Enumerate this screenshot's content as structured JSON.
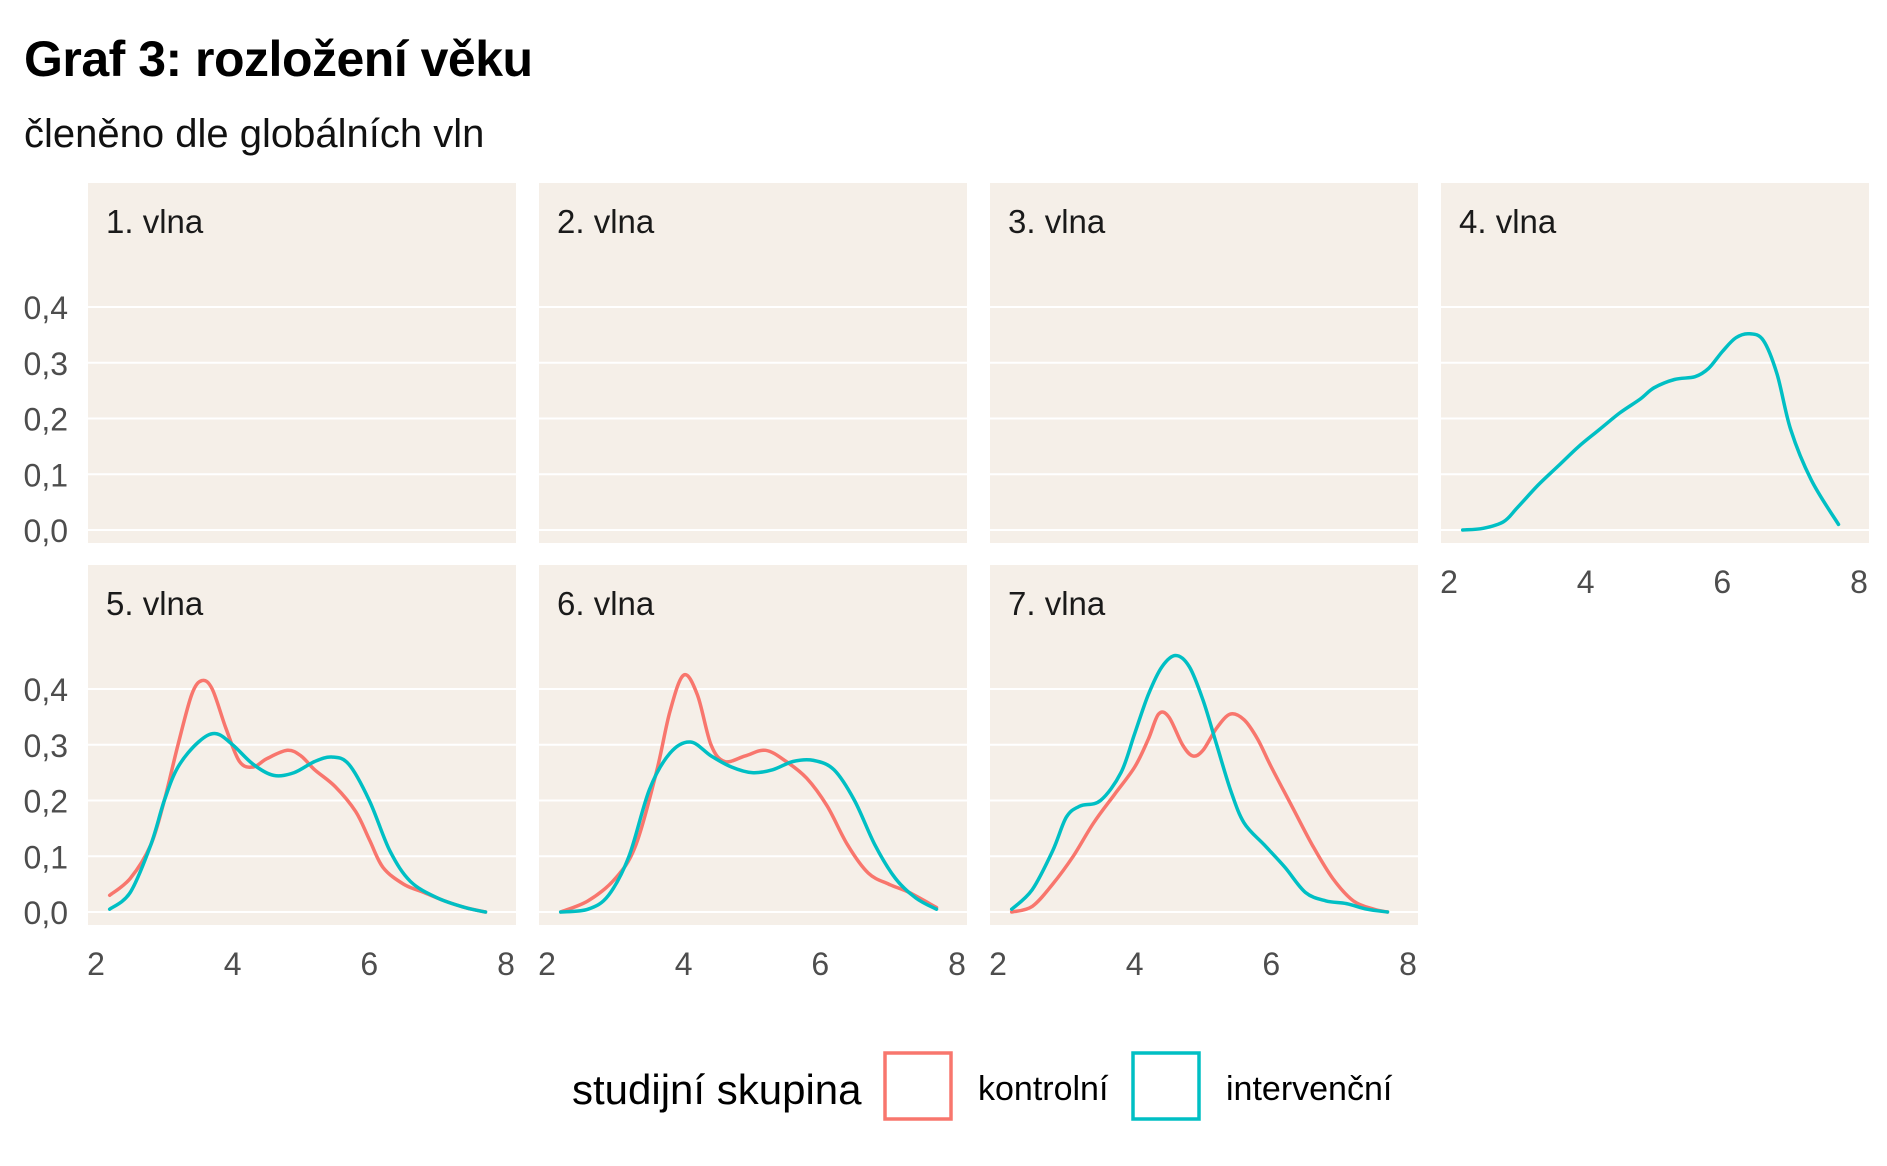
{
  "title": "Graf 3: rozložení věku",
  "subtitle": "členěno dle globálních vln",
  "colors": {
    "kontrolni": "#F8766D",
    "intervencni": "#00BFC4",
    "panel_bg": "#F5EFE8",
    "grid": "#FFFFFF",
    "tick_text": "#4D4D4D"
  },
  "chart_data": {
    "type": "line",
    "subtype": "density facets",
    "xlim": [
      2,
      8
    ],
    "ylim": [
      0,
      0.45
    ],
    "x_ticks": [
      2,
      4,
      6,
      8
    ],
    "y_ticks": [
      0.0,
      0.1,
      0.2,
      0.3,
      0.4
    ],
    "y_tick_labels": [
      "0,0",
      "0,1",
      "0,2",
      "0,3",
      "0,4"
    ],
    "x_tick_labels": [
      "2",
      "4",
      "6",
      "8"
    ],
    "legend": {
      "title": "studijní skupina",
      "position": "bottom",
      "items": [
        {
          "label": "kontrolní",
          "color": "#F8766D"
        },
        {
          "label": "intervenční",
          "color": "#00BFC4"
        }
      ]
    },
    "panels": [
      {
        "label": "1. vlna",
        "series": []
      },
      {
        "label": "2. vlna",
        "series": []
      },
      {
        "label": "3. vlna",
        "series": []
      },
      {
        "label": "4. vlna",
        "series": [
          {
            "group": "intervenční",
            "x": [
              2.2,
              2.5,
              2.8,
              3.0,
              3.3,
              3.6,
              3.9,
              4.2,
              4.5,
              4.8,
              5.0,
              5.3,
              5.6,
              5.8,
              6.0,
              6.2,
              6.4,
              6.6,
              6.8,
              7.0,
              7.3,
              7.7
            ],
            "y": [
              0.0,
              0.003,
              0.015,
              0.04,
              0.08,
              0.115,
              0.15,
              0.18,
              0.21,
              0.235,
              0.255,
              0.27,
              0.275,
              0.29,
              0.32,
              0.345,
              0.352,
              0.34,
              0.28,
              0.18,
              0.09,
              0.01
            ]
          }
        ]
      },
      {
        "label": "5. vlna",
        "series": [
          {
            "group": "kontrolní",
            "x": [
              2.2,
              2.5,
              2.8,
              3.0,
              3.2,
              3.4,
              3.55,
              3.7,
              3.9,
              4.1,
              4.3,
              4.5,
              4.8,
              5.0,
              5.2,
              5.5,
              5.8,
              6.0,
              6.2,
              6.5,
              6.8,
              7.1,
              7.4,
              7.7
            ],
            "y": [
              0.03,
              0.06,
              0.12,
              0.2,
              0.3,
              0.39,
              0.415,
              0.4,
              0.33,
              0.27,
              0.26,
              0.275,
              0.29,
              0.28,
              0.255,
              0.225,
              0.18,
              0.13,
              0.08,
              0.05,
              0.035,
              0.02,
              0.008,
              0.0
            ]
          },
          {
            "group": "intervenční",
            "x": [
              2.2,
              2.5,
              2.8,
              3.0,
              3.2,
              3.5,
              3.75,
              4.0,
              4.3,
              4.6,
              4.9,
              5.2,
              5.45,
              5.7,
              6.0,
              6.3,
              6.6,
              7.0,
              7.4,
              7.7
            ],
            "y": [
              0.005,
              0.035,
              0.12,
              0.2,
              0.26,
              0.305,
              0.32,
              0.3,
              0.265,
              0.245,
              0.25,
              0.27,
              0.278,
              0.265,
              0.2,
              0.11,
              0.055,
              0.025,
              0.008,
              0.0
            ]
          }
        ]
      },
      {
        "label": "6. vlna",
        "series": [
          {
            "group": "kontrolní",
            "x": [
              2.2,
              2.6,
              3.0,
              3.3,
              3.6,
              3.8,
              4.0,
              4.2,
              4.4,
              4.6,
              4.9,
              5.2,
              5.5,
              5.8,
              6.1,
              6.4,
              6.7,
              7.0,
              7.3,
              7.7
            ],
            "y": [
              0.0,
              0.02,
              0.06,
              0.12,
              0.25,
              0.36,
              0.425,
              0.39,
              0.3,
              0.27,
              0.28,
              0.29,
              0.27,
              0.24,
              0.19,
              0.12,
              0.07,
              0.05,
              0.035,
              0.008
            ]
          },
          {
            "group": "intervenční",
            "x": [
              2.2,
              2.6,
              2.9,
              3.2,
              3.5,
              3.8,
              4.1,
              4.4,
              4.7,
              5.0,
              5.3,
              5.6,
              5.9,
              6.2,
              6.5,
              6.8,
              7.1,
              7.4,
              7.7
            ],
            "y": [
              0.0,
              0.005,
              0.03,
              0.1,
              0.22,
              0.285,
              0.305,
              0.28,
              0.26,
              0.25,
              0.255,
              0.27,
              0.272,
              0.255,
              0.2,
              0.12,
              0.06,
              0.025,
              0.005
            ]
          }
        ]
      },
      {
        "label": "7. vlna",
        "series": [
          {
            "group": "kontrolní",
            "x": [
              2.2,
              2.5,
              2.8,
              3.1,
              3.4,
              3.7,
              4.0,
              4.2,
              4.35,
              4.5,
              4.7,
              4.85,
              5.0,
              5.2,
              5.4,
              5.6,
              5.8,
              6.0,
              6.3,
              6.6,
              6.9,
              7.2,
              7.5,
              7.7
            ],
            "y": [
              0.0,
              0.01,
              0.05,
              0.1,
              0.16,
              0.21,
              0.26,
              0.31,
              0.355,
              0.35,
              0.3,
              0.28,
              0.29,
              0.33,
              0.355,
              0.345,
              0.31,
              0.26,
              0.19,
              0.12,
              0.06,
              0.02,
              0.005,
              0.0
            ]
          },
          {
            "group": "intervenční",
            "x": [
              2.2,
              2.5,
              2.8,
              3.0,
              3.2,
              3.5,
              3.8,
              4.0,
              4.2,
              4.4,
              4.6,
              4.8,
              5.0,
              5.2,
              5.4,
              5.6,
              5.9,
              6.2,
              6.5,
              6.8,
              7.1,
              7.4,
              7.7
            ],
            "y": [
              0.005,
              0.04,
              0.11,
              0.17,
              0.19,
              0.2,
              0.25,
              0.32,
              0.39,
              0.44,
              0.46,
              0.44,
              0.38,
              0.3,
              0.22,
              0.16,
              0.12,
              0.08,
              0.035,
              0.02,
              0.015,
              0.005,
              0.0
            ]
          }
        ]
      }
    ]
  }
}
